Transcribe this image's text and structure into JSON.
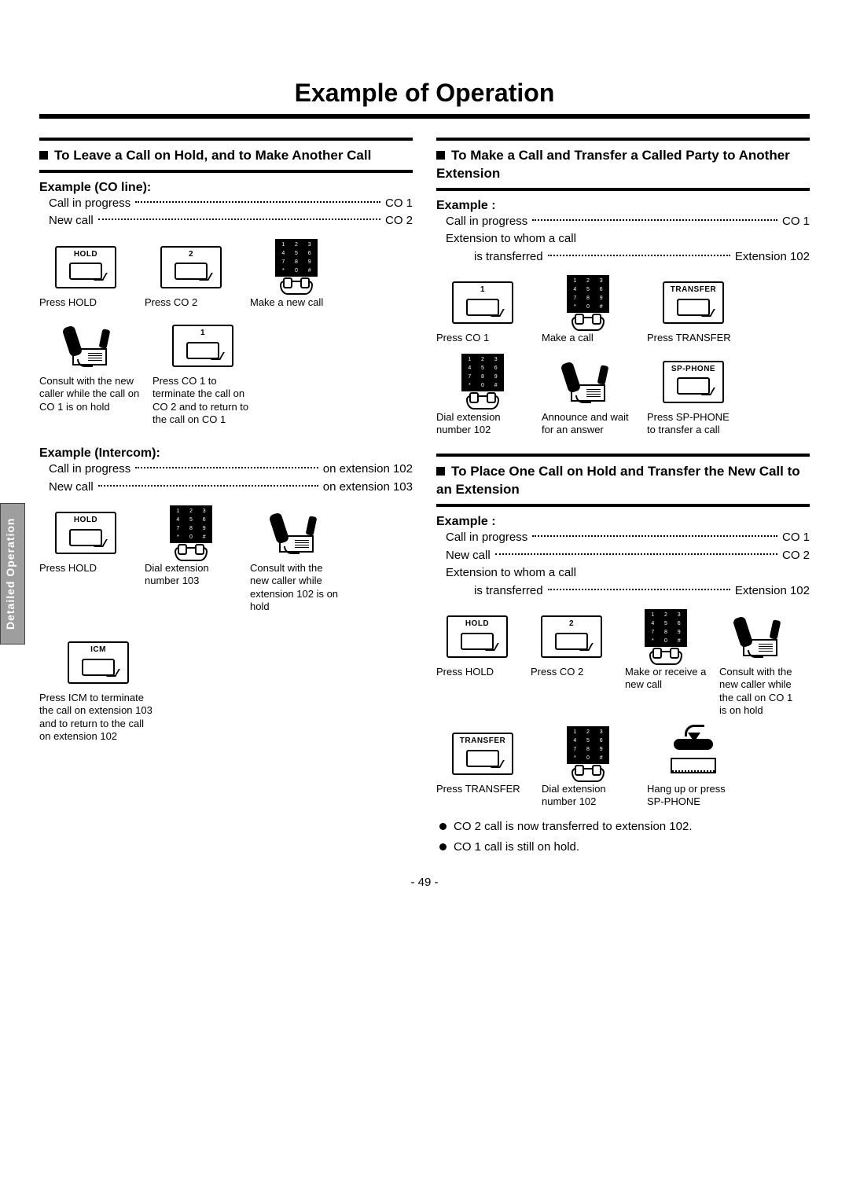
{
  "page": {
    "title": "Example of Operation",
    "sideTab": "Detailed Operation",
    "pageNumber": "- 49 -"
  },
  "left": {
    "section1": {
      "heading": "To Leave a Call on Hold, and to Make Another Call",
      "exCO": {
        "label": "Example (CO line):",
        "rows": [
          {
            "k": "Call in progress",
            "v": "CO 1"
          },
          {
            "k": "New call",
            "v": "CO 2"
          }
        ],
        "stepsA": [
          {
            "btn": "HOLD",
            "cap": "Press HOLD"
          },
          {
            "btn": "2",
            "cap": "Press CO 2"
          },
          {
            "keypad": true,
            "cap": "Make a new call"
          }
        ],
        "stepsB": [
          {
            "phone": true,
            "cap": "Consult with the new caller while the call on CO 1 is on hold"
          },
          {
            "btn": "1",
            "cap": "Press CO 1 to terminate the call on CO 2 and to return to the call on CO 1"
          }
        ]
      },
      "exICM": {
        "label": "Example (Intercom):",
        "rows": [
          {
            "k": "Call in progress",
            "v": "on extension 102"
          },
          {
            "k": "New call",
            "v": "on extension 103"
          }
        ],
        "stepsA": [
          {
            "btn": "HOLD",
            "cap": "Press HOLD"
          },
          {
            "keypad": true,
            "cap": "Dial extension number 103"
          },
          {
            "phone": true,
            "cap": "Consult with the new caller while extension 102 is on hold"
          }
        ],
        "stepsB": [
          {
            "btn": "ICM",
            "cap": "Press ICM to terminate the call on extension 103 and to return to the call on extension 102"
          }
        ]
      }
    }
  },
  "right": {
    "section2": {
      "heading": "To Make a Call and Transfer a Called Party to Another Extension",
      "ex": {
        "label": "Example :",
        "rows": [
          {
            "k": "Call in progress",
            "v": "CO 1"
          },
          {
            "k": "Extension to whom a call",
            "v": ""
          },
          {
            "k": "is transferred",
            "v": "Extension 102",
            "indent": true
          }
        ],
        "stepsA": [
          {
            "btn": "1",
            "cap": "Press CO 1"
          },
          {
            "keypad": true,
            "cap": "Make a call"
          },
          {
            "btn": "TRANSFER",
            "cap": "Press TRANSFER"
          }
        ],
        "stepsB": [
          {
            "keypad": true,
            "cap": "Dial extension number 102"
          },
          {
            "phone": true,
            "cap": "Announce and wait for an answer"
          },
          {
            "btn": "SP-PHONE",
            "cap": "Press SP-PHONE to transfer a call"
          }
        ]
      }
    },
    "section3": {
      "heading": "To Place One Call on Hold and Transfer the New Call to an Extension",
      "ex": {
        "label": "Example :",
        "rows": [
          {
            "k": "Call in progress",
            "v": "CO 1"
          },
          {
            "k": "New call",
            "v": "CO 2"
          },
          {
            "k": "Extension to whom a call",
            "v": ""
          },
          {
            "k": "is transferred",
            "v": "Extension 102",
            "indent": true
          }
        ],
        "stepsA": [
          {
            "btn": "HOLD",
            "cap": "Press HOLD"
          },
          {
            "btn": "2",
            "cap": "Press CO 2"
          },
          {
            "keypad": true,
            "cap": "Make or receive a new call"
          },
          {
            "phone": true,
            "cap": "Consult with the new caller while the call on CO 1 is on hold"
          }
        ],
        "stepsB": [
          {
            "btn": "TRANSFER",
            "cap": "Press TRANSFER"
          },
          {
            "keypad": true,
            "cap": "Dial extension number 102"
          },
          {
            "hangup": true,
            "cap": "Hang up or press SP-PHONE"
          }
        ]
      },
      "notes": [
        "CO 2 call is now transferred to extension 102.",
        "CO 1 call is still on hold."
      ]
    }
  }
}
